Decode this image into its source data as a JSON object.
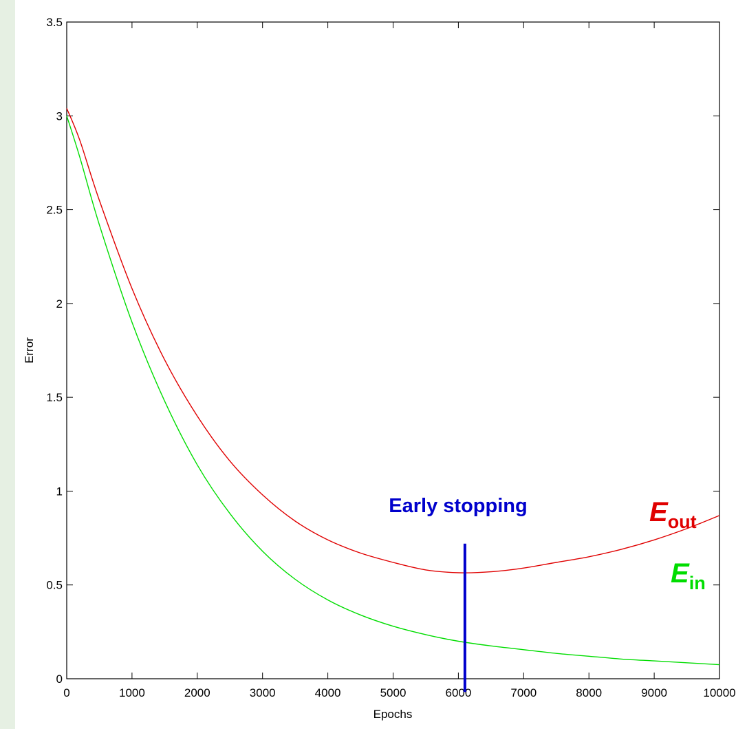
{
  "chart_data": {
    "type": "line",
    "title": "",
    "xlabel": "Epochs",
    "ylabel": "Error",
    "xlim": [
      0,
      10000
    ],
    "ylim": [
      0,
      3.5
    ],
    "grid": false,
    "x_ticks": [
      0,
      1000,
      2000,
      3000,
      4000,
      5000,
      6000,
      7000,
      8000,
      9000,
      10000
    ],
    "y_ticks": [
      0,
      0.5,
      1,
      1.5,
      2,
      2.5,
      3,
      3.5
    ],
    "series": [
      {
        "name": "E_out",
        "label_main": "E",
        "label_sub": "out",
        "color": "#e00000",
        "points": [
          [
            0,
            3.04
          ],
          [
            200,
            2.87
          ],
          [
            500,
            2.55
          ],
          [
            1000,
            2.08
          ],
          [
            1500,
            1.7
          ],
          [
            2000,
            1.4
          ],
          [
            2500,
            1.16
          ],
          [
            3000,
            0.98
          ],
          [
            3500,
            0.84
          ],
          [
            4000,
            0.74
          ],
          [
            4500,
            0.67
          ],
          [
            5000,
            0.62
          ],
          [
            5500,
            0.58
          ],
          [
            6000,
            0.565
          ],
          [
            6500,
            0.57
          ],
          [
            7000,
            0.59
          ],
          [
            7500,
            0.62
          ],
          [
            8000,
            0.65
          ],
          [
            8500,
            0.69
          ],
          [
            9000,
            0.74
          ],
          [
            9500,
            0.8
          ],
          [
            10000,
            0.87
          ]
        ]
      },
      {
        "name": "E_in",
        "label_main": "E",
        "label_sub": "in",
        "color": "#00dd00",
        "points": [
          [
            0,
            3.0
          ],
          [
            200,
            2.78
          ],
          [
            500,
            2.42
          ],
          [
            1000,
            1.9
          ],
          [
            1500,
            1.48
          ],
          [
            2000,
            1.14
          ],
          [
            2500,
            0.88
          ],
          [
            3000,
            0.68
          ],
          [
            3500,
            0.53
          ],
          [
            4000,
            0.42
          ],
          [
            4500,
            0.34
          ],
          [
            5000,
            0.28
          ],
          [
            5500,
            0.235
          ],
          [
            6000,
            0.2
          ],
          [
            6500,
            0.175
          ],
          [
            7000,
            0.155
          ],
          [
            7500,
            0.135
          ],
          [
            8000,
            0.12
          ],
          [
            8500,
            0.105
          ],
          [
            9000,
            0.095
          ],
          [
            9500,
            0.085
          ],
          [
            10000,
            0.075
          ]
        ]
      }
    ],
    "annotations": [
      {
        "text": "Early stopping",
        "color": "#0000cc",
        "marker_x": 6100,
        "marker_y_top": 0.72,
        "marker_y_bottom": -0.07
      }
    ]
  }
}
